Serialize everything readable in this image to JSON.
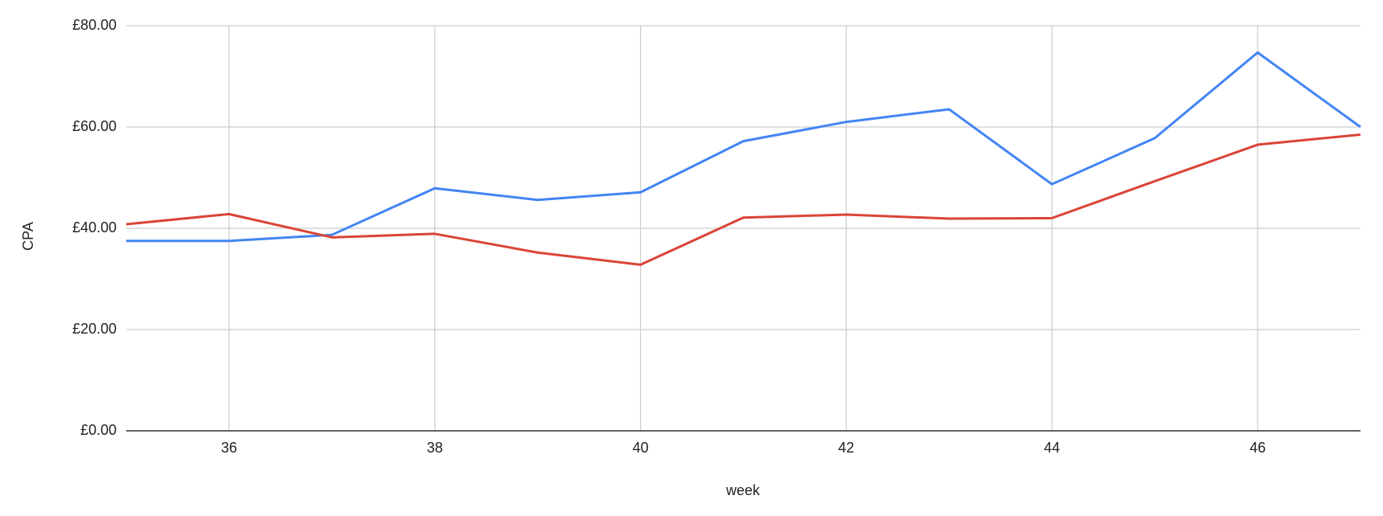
{
  "chart_data": {
    "type": "line",
    "x_label": "week",
    "y_label": "CPA",
    "x": [
      35,
      36,
      37,
      38,
      39,
      40,
      41,
      42,
      43,
      44,
      45,
      46,
      47
    ],
    "series": [
      {
        "color": "#4285f4",
        "values": [
          37.5,
          37.5,
          38.7,
          47.9,
          45.6,
          47.1,
          57.2,
          61.0,
          63.5,
          48.7,
          57.8,
          74.7,
          60.0
        ]
      },
      {
        "color": "#db4437",
        "values": [
          40.8,
          42.8,
          38.2,
          38.9,
          35.2,
          32.8,
          42.1,
          42.7,
          41.9,
          42.0,
          49.3,
          56.5,
          58.5
        ]
      }
    ],
    "xlim": [
      35,
      47
    ],
    "xticks": [
      36,
      38,
      40,
      42,
      44,
      46
    ],
    "ylim": [
      0,
      80
    ],
    "yticks": [
      {
        "value": 0,
        "label": "£0.00"
      },
      {
        "value": 20,
        "label": "£20.00"
      },
      {
        "value": 40,
        "label": "£40.00"
      },
      {
        "value": 60,
        "label": "£60.00"
      },
      {
        "value": 80,
        "label": "£80.00"
      }
    ],
    "grid": true
  }
}
